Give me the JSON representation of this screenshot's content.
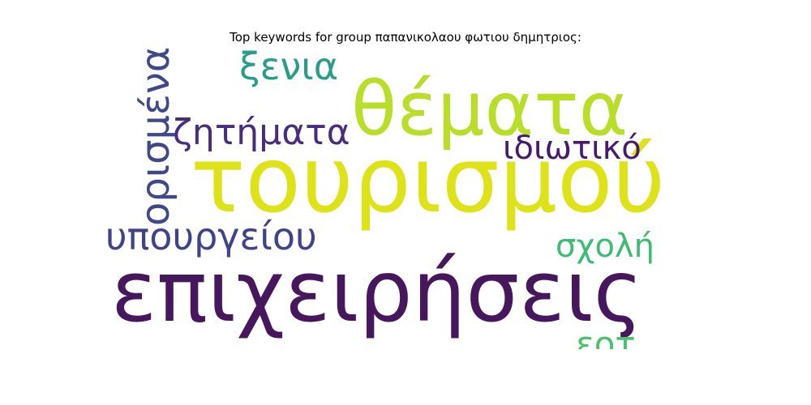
{
  "title": "Top keywords for group παπανικολαου φωτιου δημητριος:",
  "words": [
    {
      "text": "τουρισμού",
      "color": "#dde318"
    },
    {
      "text": "επιχειρήσεις",
      "color": "#46175d"
    },
    {
      "text": "θέματα",
      "color": "#b8de29"
    },
    {
      "text": "ορισμένα",
      "color": "#3f4889"
    },
    {
      "text": "ξενια",
      "color": "#2a9c8a"
    },
    {
      "text": "ζητήματα",
      "color": "#472d7b"
    },
    {
      "text": "ιδιωτικό",
      "color": "#481a6c"
    },
    {
      "text": "υπουργείου",
      "color": "#404387"
    },
    {
      "text": "σχολή",
      "color": "#3dbc74"
    },
    {
      "text": "εοτ",
      "color": "#4ac16d"
    }
  ]
}
